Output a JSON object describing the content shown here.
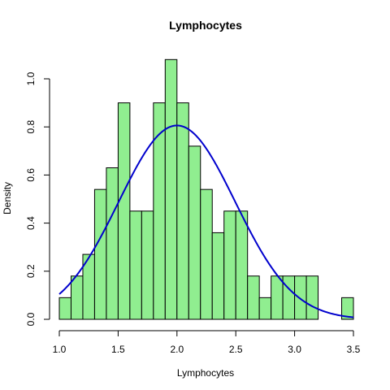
{
  "chart_data": {
    "type": "bar",
    "subtype": "histogram",
    "title": "Lymphocytes",
    "xlabel": "Lymphocytes",
    "ylabel": "Density",
    "xlim": [
      1.0,
      3.5
    ],
    "ylim": [
      0,
      1.08
    ],
    "bin_width": 0.1,
    "bin_start": 1.0,
    "bins": [
      {
        "x0": 1.0,
        "x1": 1.1,
        "value": 0.09
      },
      {
        "x0": 1.1,
        "x1": 1.2,
        "value": 0.18
      },
      {
        "x0": 1.2,
        "x1": 1.3,
        "value": 0.27
      },
      {
        "x0": 1.3,
        "x1": 1.4,
        "value": 0.54
      },
      {
        "x0": 1.4,
        "x1": 1.5,
        "value": 0.63
      },
      {
        "x0": 1.5,
        "x1": 1.6,
        "value": 0.9
      },
      {
        "x0": 1.6,
        "x1": 1.7,
        "value": 0.45
      },
      {
        "x0": 1.7,
        "x1": 1.8,
        "value": 0.45
      },
      {
        "x0": 1.8,
        "x1": 1.9,
        "value": 0.9
      },
      {
        "x0": 1.9,
        "x1": 2.0,
        "value": 1.08
      },
      {
        "x0": 2.0,
        "x1": 2.1,
        "value": 0.9
      },
      {
        "x0": 2.1,
        "x1": 2.2,
        "value": 0.72
      },
      {
        "x0": 2.2,
        "x1": 2.3,
        "value": 0.54
      },
      {
        "x0": 2.3,
        "x1": 2.4,
        "value": 0.36
      },
      {
        "x0": 2.4,
        "x1": 2.5,
        "value": 0.45
      },
      {
        "x0": 2.5,
        "x1": 2.6,
        "value": 0.45
      },
      {
        "x0": 2.6,
        "x1": 2.7,
        "value": 0.18
      },
      {
        "x0": 2.7,
        "x1": 2.8,
        "value": 0.09
      },
      {
        "x0": 2.8,
        "x1": 2.9,
        "value": 0.18
      },
      {
        "x0": 2.9,
        "x1": 3.0,
        "value": 0.18
      },
      {
        "x0": 3.0,
        "x1": 3.1,
        "value": 0.18
      },
      {
        "x0": 3.1,
        "x1": 3.2,
        "value": 0.18
      },
      {
        "x0": 3.2,
        "x1": 3.3,
        "value": 0.0
      },
      {
        "x0": 3.3,
        "x1": 3.4,
        "value": 0.0
      },
      {
        "x0": 3.4,
        "x1": 3.5,
        "value": 0.09
      }
    ],
    "density_curve": {
      "kind": "normal",
      "mean": 2.0,
      "sd": 0.495,
      "x_range": [
        1.0,
        3.5
      ]
    },
    "x_ticks": [
      "1.0",
      "1.5",
      "2.0",
      "2.5",
      "3.0",
      "3.5"
    ],
    "y_ticks": [
      "0.0",
      "0.2",
      "0.4",
      "0.6",
      "0.8",
      "1.0"
    ],
    "grid": false,
    "legend": "none",
    "colors": {
      "bar_fill": "#90ee90",
      "bar_stroke": "#000000",
      "curve": "#0000cd"
    }
  }
}
